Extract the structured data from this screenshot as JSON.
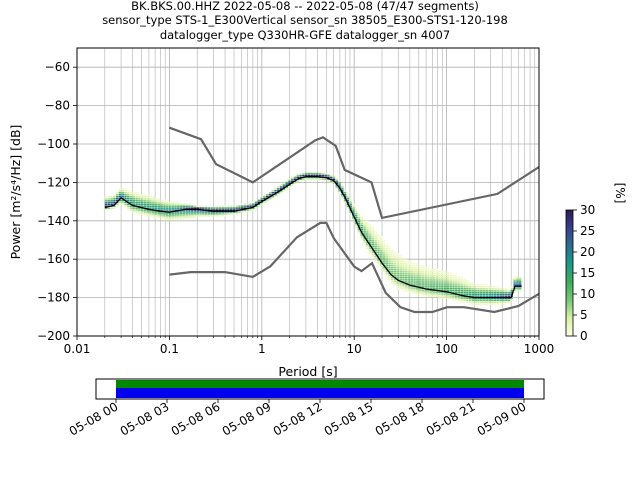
{
  "title": {
    "line1": "BK.BKS.00.HHZ   2022-05-08 -- 2022-05-08  (47/47 segments)",
    "line2": "sensor_type STS-1_E300Vertical sensor_sn 38505_E300-STS1-120-198",
    "line3": "datalogger_type Q330HR-GFE datalogger_sn 4007"
  },
  "chart_data": [
    {
      "type": "heatmap",
      "xlabel": "Period [s]",
      "ylabel": "Power [m²/s⁴/Hz] [dB]",
      "xscale": "log",
      "xlim": [
        0.01,
        1000
      ],
      "ylim": [
        -200,
        -50
      ],
      "xticks": [
        {
          "value": 0.01,
          "label": "0.01"
        },
        {
          "value": 0.1,
          "label": "0.1"
        },
        {
          "value": 1,
          "label": "1"
        },
        {
          "value": 10,
          "label": "10"
        },
        {
          "value": 100,
          "label": "100"
        },
        {
          "value": 1000,
          "label": "1000"
        }
      ],
      "yticks": [
        {
          "value": -60,
          "label": "−60"
        },
        {
          "value": -80,
          "label": "−80"
        },
        {
          "value": -100,
          "label": "−100"
        },
        {
          "value": -120,
          "label": "−120"
        },
        {
          "value": -140,
          "label": "−140"
        },
        {
          "value": -160,
          "label": "−160"
        },
        {
          "value": -180,
          "label": "−180"
        },
        {
          "value": -200,
          "label": "−200"
        }
      ],
      "grid": true,
      "noise_models": {
        "color": "#666666",
        "high": {
          "x": [
            0.1,
            0.22,
            0.32,
            0.8,
            3.8,
            4.6,
            6.3,
            7.9,
            15.4,
            20,
            354.8,
            1000
          ],
          "y": [
            -91.5,
            -97.5,
            -110.5,
            -120,
            -98,
            -96.5,
            -101,
            -113.5,
            -120,
            -138.5,
            -126,
            -112
          ]
        },
        "low": {
          "x": [
            0.1,
            0.17,
            0.4,
            0.8,
            1.24,
            2.4,
            4.3,
            5,
            6,
            10,
            12,
            15.6,
            21.9,
            31.6,
            45,
            70,
            101,
            154,
            328,
            600,
            1000
          ],
          "y": [
            -168,
            -166.7,
            -166.7,
            -169.2,
            -163.7,
            -148.6,
            -141.1,
            -141.1,
            -149,
            -163.8,
            -166.2,
            -162.1,
            -177.5,
            -185,
            -187.5,
            -187.5,
            -185,
            -185,
            -187.5,
            -184.4,
            -178
          ]
        }
      },
      "median": {
        "color": "#000000",
        "x": [
          0.02,
          0.025,
          0.03,
          0.04,
          0.06,
          0.08,
          0.1,
          0.15,
          0.2,
          0.3,
          0.5,
          0.8,
          1,
          1.5,
          2,
          2.5,
          3,
          4,
          5,
          6,
          7,
          8,
          10,
          12,
          15,
          20,
          25,
          30,
          40,
          60,
          100,
          150,
          200,
          300,
          500,
          550,
          650
        ],
        "y": [
          -133,
          -132,
          -128,
          -132,
          -134,
          -135,
          -135.5,
          -134,
          -134,
          -135,
          -135,
          -133,
          -130,
          -125,
          -121,
          -118,
          -117,
          -117,
          -117.5,
          -119,
          -123,
          -128,
          -138,
          -146,
          -153,
          -162,
          -168,
          -171,
          -173.5,
          -175.5,
          -177,
          -179,
          -180,
          -180,
          -180,
          -174,
          -174
        ]
      },
      "density": {
        "description_levels": "percentage of segments",
        "band_upper": [
          -129,
          -128,
          -124,
          -126,
          -128,
          -130,
          -131,
          -132,
          -133,
          -133.5,
          -133,
          -131.5,
          -128.5,
          -123,
          -119,
          -116.5,
          -115.5,
          -115.5,
          -116,
          -117.5,
          -120,
          -125,
          -133,
          -139,
          -143,
          -150,
          -155,
          -158,
          -162,
          -165,
          -168,
          -171,
          -174,
          -175,
          -177,
          -170,
          -170
        ],
        "band_lower": [
          -135,
          -134,
          -131,
          -136,
          -138,
          -139,
          -140,
          -139,
          -138,
          -138,
          -137,
          -135,
          -132,
          -127,
          -123,
          -120,
          -119,
          -119,
          -119.5,
          -121,
          -126,
          -131,
          -141,
          -150,
          -158,
          -166,
          -173,
          -176,
          -178,
          -180,
          -181,
          -183,
          -184,
          -184,
          -183,
          -177,
          -177
        ]
      },
      "colorbar": {
        "label": "[%]",
        "min": 0,
        "max": 30,
        "ticks": [
          0,
          5,
          10,
          15,
          20,
          25,
          30
        ],
        "tick_labels": [
          "0",
          "5",
          "10",
          "15",
          "20",
          "25",
          "30"
        ],
        "colormap": [
          "#ffffe5",
          "#d9f0a3",
          "#78c679",
          "#41ab5d",
          "#1d9a8a",
          "#2b6f8e",
          "#3b3f8f",
          "#2d1b4e"
        ]
      }
    },
    {
      "type": "timeline",
      "xlim": [
        "2022-05-08T00:00",
        "2022-05-09T03:00"
      ],
      "coverage_start": "2022-05-08T00:00",
      "coverage_end": "2022-05-09T00:00",
      "data_color": "#0000ee",
      "gap_color": "#008800",
      "xticks": [
        "05-08 00",
        "05-08 03",
        "05-08 06",
        "05-08 09",
        "05-08 12",
        "05-08 15",
        "05-08 18",
        "05-08 21",
        "05-09 00"
      ]
    }
  ]
}
